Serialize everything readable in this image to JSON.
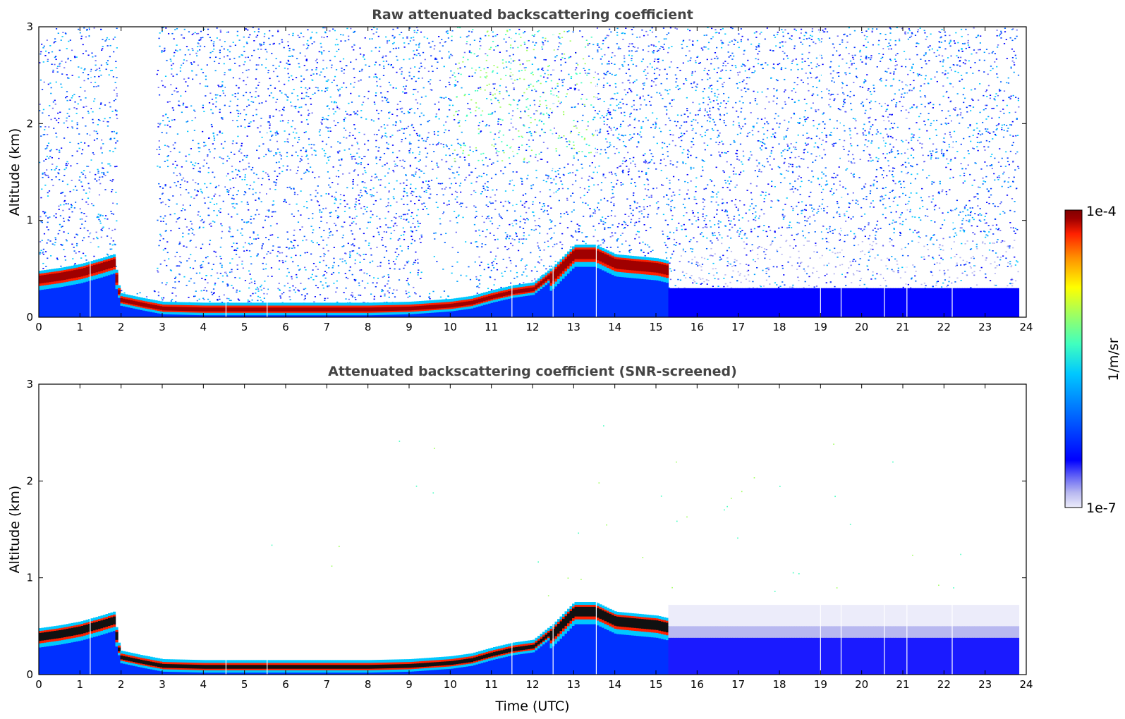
{
  "chart_data": [
    {
      "type": "heatmap",
      "title": "Raw attenuated backscattering coefficient",
      "xlabel": "",
      "ylabel": "Altitude (km)",
      "xlim": [
        0,
        24
      ],
      "ylim": [
        0,
        3
      ],
      "xticks": [
        0,
        1,
        2,
        3,
        4,
        5,
        6,
        7,
        8,
        9,
        10,
        11,
        12,
        13,
        14,
        15,
        16,
        17,
        18,
        19,
        20,
        21,
        22,
        23,
        24
      ],
      "yticks": [
        0,
        1,
        2,
        3
      ],
      "x_tick_labels": [
        "0",
        "1",
        "2",
        "3",
        "4",
        "5",
        "6",
        "7",
        "8",
        "9",
        "10",
        "11",
        "12",
        "13",
        "14",
        "15",
        "16",
        "17",
        "18",
        "19",
        "20",
        "21",
        "22",
        "23",
        "24"
      ],
      "y_tick_labels": [
        "0",
        "1",
        "2",
        "3"
      ],
      "colorscale": "jet",
      "log_scale": true,
      "screened": false,
      "layer_top_km": {
        "time_utc": [
          0,
          0.5,
          1,
          1.5,
          1.8,
          1.95,
          2.5,
          3,
          4,
          5,
          6,
          7,
          8,
          9,
          10,
          10.5,
          11,
          11.5,
          12,
          12.5,
          13,
          13.5,
          14,
          14.5,
          15,
          15.3
        ],
        "altitude_km": [
          0.45,
          0.48,
          0.52,
          0.58,
          0.62,
          0.22,
          0.17,
          0.13,
          0.12,
          0.12,
          0.12,
          0.12,
          0.12,
          0.13,
          0.16,
          0.19,
          0.25,
          0.3,
          0.33,
          0.5,
          0.72,
          0.72,
          0.62,
          0.6,
          0.58,
          0.55
        ]
      },
      "instrument_gaps_utc": [
        1.25,
        4.55,
        5.55,
        11.5,
        12.5,
        13.55,
        19.0,
        19.5,
        20.55,
        21.1,
        22.2
      ]
    },
    {
      "type": "heatmap",
      "title": "Attenuated backscattering coefficient (SNR-screened)",
      "xlabel": "Time (UTC)",
      "ylabel": "Altitude (km)",
      "xlim": [
        0,
        24
      ],
      "ylim": [
        0,
        3
      ],
      "xticks": [
        0,
        1,
        2,
        3,
        4,
        5,
        6,
        7,
        8,
        9,
        10,
        11,
        12,
        13,
        14,
        15,
        16,
        17,
        18,
        19,
        20,
        21,
        22,
        23,
        24
      ],
      "yticks": [
        0,
        1,
        2,
        3
      ],
      "x_tick_labels": [
        "0",
        "1",
        "2",
        "3",
        "4",
        "5",
        "6",
        "7",
        "8",
        "9",
        "10",
        "11",
        "12",
        "13",
        "14",
        "15",
        "16",
        "17",
        "18",
        "19",
        "20",
        "21",
        "22",
        "23",
        "24"
      ],
      "y_tick_labels": [
        "0",
        "1",
        "2",
        "3"
      ],
      "colorscale": "jet",
      "log_scale": true,
      "screened": true,
      "layer_top_km": {
        "time_utc": [
          0,
          0.5,
          1,
          1.5,
          1.8,
          1.95,
          2.5,
          3,
          4,
          5,
          6,
          7,
          8,
          9,
          10,
          10.5,
          11,
          11.5,
          12,
          12.5,
          13,
          13.5,
          14,
          14.5,
          15,
          15.3
        ],
        "altitude_km": [
          0.45,
          0.48,
          0.52,
          0.58,
          0.62,
          0.22,
          0.17,
          0.13,
          0.12,
          0.12,
          0.12,
          0.12,
          0.12,
          0.13,
          0.16,
          0.19,
          0.25,
          0.3,
          0.33,
          0.5,
          0.72,
          0.72,
          0.62,
          0.6,
          0.58,
          0.55
        ]
      },
      "instrument_gaps_utc": [
        1.25,
        4.55,
        5.55,
        11.5,
        12.5,
        13.55,
        19.0,
        19.5,
        20.55,
        21.1,
        22.2
      ]
    }
  ],
  "colorbar": {
    "label": "1/m/sr",
    "max_label": "1e-4",
    "min_label": "1e-7",
    "min": 1e-07,
    "max": 0.0001,
    "scale": "log",
    "colors": [
      "#ececfa",
      "#b8b8f0",
      "#6a6af5",
      "#0000ff",
      "#0060ff",
      "#00c8ff",
      "#40ffbf",
      "#a0ff60",
      "#ffff00",
      "#ff9000",
      "#ff2000",
      "#a00000",
      "#800000"
    ]
  }
}
